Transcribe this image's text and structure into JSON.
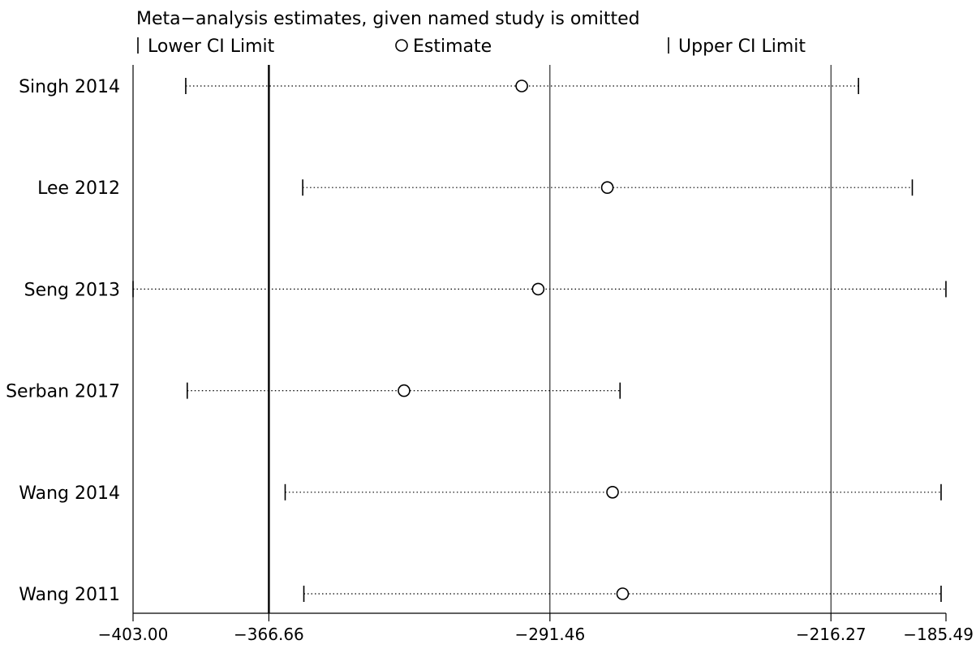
{
  "chart_data": {
    "type": "scatter",
    "title": "Meta−analysis estimates, given named study is omitted",
    "legend": {
      "placement": "top",
      "entries": [
        {
          "symbol": "|",
          "label": "Lower CI Limit"
        },
        {
          "symbol": "○",
          "label": "Estimate"
        },
        {
          "symbol": "|",
          "label": "Upper CI Limit"
        }
      ]
    },
    "xlim": [
      -403.0,
      -185.49
    ],
    "x_ticks": [
      {
        "value": -403.0,
        "label": "−403.00"
      },
      {
        "value": -366.66,
        "label": "−366.66"
      },
      {
        "value": -291.46,
        "label": "−291.46"
      },
      {
        "value": -216.27,
        "label": "−216.27"
      },
      {
        "value": -185.49,
        "label": "−185.49"
      }
    ],
    "reference_lines": [
      {
        "value": -366.66,
        "style": "thick"
      },
      {
        "value": -291.46,
        "style": "thin"
      },
      {
        "value": -216.27,
        "style": "thin"
      }
    ],
    "studies": [
      {
        "name": "Singh 2014",
        "lower": -388.9,
        "estimate": -299.0,
        "upper": -208.9
      },
      {
        "name": "Lee 2012",
        "lower": -357.6,
        "estimate": -276.1,
        "upper": -194.5
      },
      {
        "name": "Seng 2013",
        "lower": -403.0,
        "estimate": -294.6,
        "upper": -185.5
      },
      {
        "name": "Serban 2017",
        "lower": -388.5,
        "estimate": -330.5,
        "upper": -272.7
      },
      {
        "name": "Wang 2014",
        "lower": -362.3,
        "estimate": -274.7,
        "upper": -186.8
      },
      {
        "name": "Wang 2011",
        "lower": -357.3,
        "estimate": -272.0,
        "upper": -186.8
      }
    ]
  }
}
